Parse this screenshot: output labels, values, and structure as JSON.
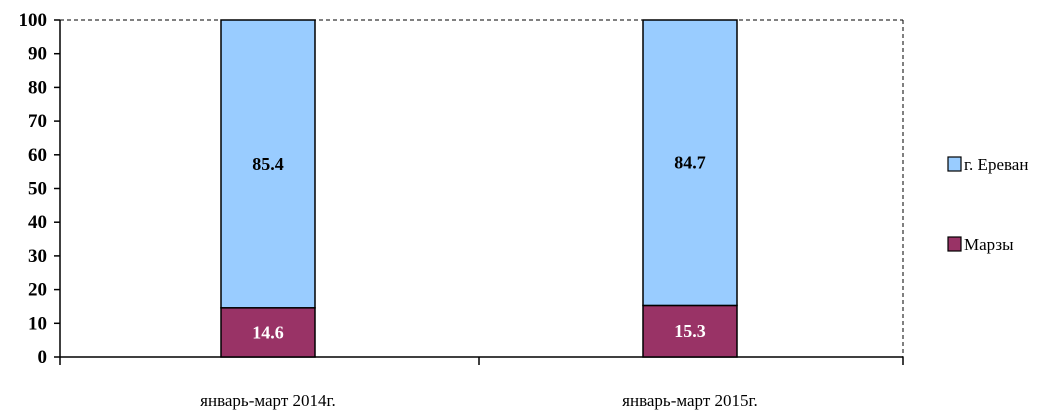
{
  "chart_data": {
    "type": "bar",
    "stacked": true,
    "categories": [
      "январь-март 2014г.",
      "январь-март 2015г."
    ],
    "series": [
      {
        "name": "Марзы",
        "values": [
          14.6,
          15.3
        ],
        "color": "#993366",
        "label_color": "#ffffff"
      },
      {
        "name": "г. Ереван",
        "values": [
          85.4,
          84.7
        ],
        "color": "#99ccff",
        "label_color": "#000000"
      }
    ],
    "ylim": [
      0,
      100
    ],
    "yticks": [
      0,
      10,
      20,
      30,
      40,
      50,
      60,
      70,
      80,
      90,
      100
    ],
    "legend": {
      "position": "right",
      "order": [
        "г. Ереван",
        "Марзы"
      ]
    },
    "grid": false
  }
}
